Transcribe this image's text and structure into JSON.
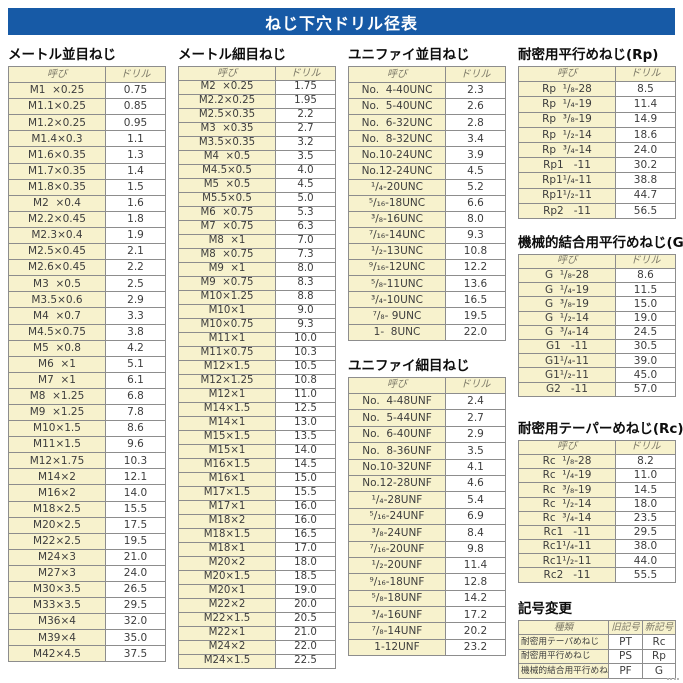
{
  "banner": {
    "title": "ねじ下穴ドリル径表",
    "bg_color": "#175aa6"
  },
  "column_headers": {
    "name": "呼び",
    "drill": "ドリル"
  },
  "colors": {
    "cell_yellow": "#f7f2cd",
    "border_gray": "#8d8d8d",
    "text": "#3d3d3d"
  },
  "tables": {
    "metric_coarse": {
      "title": "メートル並目ねじ",
      "rows": [
        [
          "M1  ×0.25",
          "0.75"
        ],
        [
          "M1.1×0.25",
          "0.85"
        ],
        [
          "M1.2×0.25",
          "0.95"
        ],
        [
          "M1.4×0.3",
          "1.1"
        ],
        [
          "M1.6×0.35",
          "1.3"
        ],
        [
          "M1.7×0.35",
          "1.4"
        ],
        [
          "M1.8×0.35",
          "1.5"
        ],
        [
          "M2  ×0.4",
          "1.6"
        ],
        [
          "M2.2×0.45",
          "1.8"
        ],
        [
          "M2.3×0.4",
          "1.9"
        ],
        [
          "M2.5×0.45",
          "2.1"
        ],
        [
          "M2.6×0.45",
          "2.2"
        ],
        [
          "M3  ×0.5",
          "2.5"
        ],
        [
          "M3.5×0.6",
          "2.9"
        ],
        [
          "M4  ×0.7",
          "3.3"
        ],
        [
          "M4.5×0.75",
          "3.8"
        ],
        [
          "M5  ×0.8",
          "4.2"
        ],
        [
          "M6  ×1",
          "5.1"
        ],
        [
          "M7  ×1",
          "6.1"
        ],
        [
          "M8  ×1.25",
          "6.8"
        ],
        [
          "M9  ×1.25",
          "7.8"
        ],
        [
          "M10×1.5",
          "8.6"
        ],
        [
          "M11×1.5",
          "9.6"
        ],
        [
          "M12×1.75",
          "10.3"
        ],
        [
          "M14×2",
          "12.1"
        ],
        [
          "M16×2",
          "14.0"
        ],
        [
          "M18×2.5",
          "15.5"
        ],
        [
          "M20×2.5",
          "17.5"
        ],
        [
          "M22×2.5",
          "19.5"
        ],
        [
          "M24×3",
          "21.0"
        ],
        [
          "M27×3",
          "24.0"
        ],
        [
          "M30×3.5",
          "26.5"
        ],
        [
          "M33×3.5",
          "29.5"
        ],
        [
          "M36×4",
          "32.0"
        ],
        [
          "M39×4",
          "35.0"
        ],
        [
          "M42×4.5",
          "37.5"
        ]
      ]
    },
    "metric_fine": {
      "title": "メートル細目ねじ",
      "rows": [
        [
          "M2  ×0.25",
          "1.75"
        ],
        [
          "M2.2×0.25",
          "1.95"
        ],
        [
          "M2.5×0.35",
          "2.2"
        ],
        [
          "M3  ×0.35",
          "2.7"
        ],
        [
          "M3.5×0.35",
          "3.2"
        ],
        [
          "M4  ×0.5",
          "3.5"
        ],
        [
          "M4.5×0.5",
          "4.0"
        ],
        [
          "M5  ×0.5",
          "4.5"
        ],
        [
          "M5.5×0.5",
          "5.0"
        ],
        [
          "M6  ×0.75",
          "5.3"
        ],
        [
          "M7  ×0.75",
          "6.3"
        ],
        [
          "M8  ×1",
          "7.0"
        ],
        [
          "M8  ×0.75",
          "7.3"
        ],
        [
          "M9  ×1",
          "8.0"
        ],
        [
          "M9  ×0.75",
          "8.3"
        ],
        [
          "M10×1.25",
          "8.8"
        ],
        [
          "M10×1",
          "9.0"
        ],
        [
          "M10×0.75",
          "9.3"
        ],
        [
          "M11×1",
          "10.0"
        ],
        [
          "M11×0.75",
          "10.3"
        ],
        [
          "M12×1.5",
          "10.5"
        ],
        [
          "M12×1.25",
          "10.8"
        ],
        [
          "M12×1",
          "11.0"
        ],
        [
          "M14×1.5",
          "12.5"
        ],
        [
          "M14×1",
          "13.0"
        ],
        [
          "M15×1.5",
          "13.5"
        ],
        [
          "M15×1",
          "14.0"
        ],
        [
          "M16×1.5",
          "14.5"
        ],
        [
          "M16×1",
          "15.0"
        ],
        [
          "M17×1.5",
          "15.5"
        ],
        [
          "M17×1",
          "16.0"
        ],
        [
          "M18×2",
          "16.0"
        ],
        [
          "M18×1.5",
          "16.5"
        ],
        [
          "M18×1",
          "17.0"
        ],
        [
          "M20×2",
          "18.0"
        ],
        [
          "M20×1.5",
          "18.5"
        ],
        [
          "M20×1",
          "19.0"
        ],
        [
          "M22×2",
          "20.0"
        ],
        [
          "M22×1.5",
          "20.5"
        ],
        [
          "M22×1",
          "21.0"
        ],
        [
          "M24×2",
          "22.0"
        ],
        [
          "M24×1.5",
          "22.5"
        ]
      ]
    },
    "unified_coarse": {
      "title": "ユニファイ並目ねじ",
      "rows": [
        [
          "No.  4-40UNC",
          "2.3"
        ],
        [
          "No.  5-40UNC",
          "2.6"
        ],
        [
          "No.  6-32UNC",
          "2.8"
        ],
        [
          "No.  8-32UNC",
          "3.4"
        ],
        [
          "No.10-24UNC",
          "3.9"
        ],
        [
          "No.12-24UNC",
          "4.5"
        ],
        [
          "¹/₄-20UNC",
          "5.2"
        ],
        [
          "⁵/₁₆-18UNC",
          "6.6"
        ],
        [
          "³/₈-16UNC",
          "8.0"
        ],
        [
          "⁷/₁₆-14UNC",
          "9.3"
        ],
        [
          "¹/₂-13UNC",
          "10.8"
        ],
        [
          "⁹/₁₆-12UNC",
          "12.2"
        ],
        [
          "⁵/₈-11UNC",
          "13.6"
        ],
        [
          "³/₄-10UNC",
          "16.5"
        ],
        [
          "⁷/₈- 9UNC",
          "19.5"
        ],
        [
          "1-  8UNC",
          "22.0"
        ]
      ]
    },
    "unified_fine": {
      "title": "ユニファイ細目ねじ",
      "rows": [
        [
          "No.  4-48UNF",
          "2.4"
        ],
        [
          "No.  5-44UNF",
          "2.7"
        ],
        [
          "No.  6-40UNF",
          "2.9"
        ],
        [
          "No.  8-36UNF",
          "3.5"
        ],
        [
          "No.10-32UNF",
          "4.1"
        ],
        [
          "No.12-28UNF",
          "4.6"
        ],
        [
          "¹/₄-28UNF",
          "5.4"
        ],
        [
          "⁵/₁₆-24UNF",
          "6.9"
        ],
        [
          "³/₈-24UNF",
          "8.4"
        ],
        [
          "⁷/₁₆-20UNF",
          "9.8"
        ],
        [
          "¹/₂-20UNF",
          "11.4"
        ],
        [
          "⁹/₁₆-18UNF",
          "12.8"
        ],
        [
          "⁵/₈-18UNF",
          "14.2"
        ],
        [
          "³/₄-16UNF",
          "17.2"
        ],
        [
          "⁷/₈-14UNF",
          "20.2"
        ],
        [
          "1-12UNF",
          "23.2"
        ]
      ]
    },
    "rp": {
      "title": "耐密用平行めねじ(Rp)",
      "rows": [
        [
          "Rp  ¹/₈-28",
          "8.5"
        ],
        [
          "Rp  ¹/₄-19",
          "11.4"
        ],
        [
          "Rp  ³/₈-19",
          "14.9"
        ],
        [
          "Rp  ¹/₂-14",
          "18.6"
        ],
        [
          "Rp  ³/₄-14",
          "24.0"
        ],
        [
          "Rp1   -11",
          "30.2"
        ],
        [
          "Rp1¹/₄-11",
          "38.8"
        ],
        [
          "Rp1¹/₂-11",
          "44.7"
        ],
        [
          "Rp2   -11",
          "56.5"
        ]
      ]
    },
    "g": {
      "title": "機械的結合用平行めねじ(G)",
      "rows": [
        [
          "G  ¹/₈-28",
          "8.6"
        ],
        [
          "G  ¹/₄-19",
          "11.5"
        ],
        [
          "G  ³/₈-19",
          "15.0"
        ],
        [
          "G  ¹/₂-14",
          "19.0"
        ],
        [
          "G  ³/₄-14",
          "24.5"
        ],
        [
          "G1   -11",
          "30.5"
        ],
        [
          "G1¹/₄-11",
          "39.0"
        ],
        [
          "G1¹/₂-11",
          "45.0"
        ],
        [
          "G2   -11",
          "57.0"
        ]
      ]
    },
    "rc": {
      "title": "耐密用テーパーめねじ(Rc)",
      "rows": [
        [
          "Rc  ¹/₈-28",
          "8.2"
        ],
        [
          "Rc  ¹/₄-19",
          "11.0"
        ],
        [
          "Rc  ³/₈-19",
          "14.5"
        ],
        [
          "Rc  ¹/₂-14",
          "18.0"
        ],
        [
          "Rc  ³/₄-14",
          "23.5"
        ],
        [
          "Rc1   -11",
          "29.5"
        ],
        [
          "Rc1¹/₄-11",
          "38.0"
        ],
        [
          "Rc1¹/₂-11",
          "44.0"
        ],
        [
          "Rc2   -11",
          "55.5"
        ]
      ]
    },
    "symbol_change": {
      "title": "記号変更",
      "headers": [
        "種類",
        "旧記号",
        "新記号"
      ],
      "rows": [
        [
          "耐密用テーパめねじ",
          "PT",
          "Rc"
        ],
        [
          "耐密用平行めねじ",
          "PS",
          "Rp"
        ],
        [
          "機械的結合用平行めねじ",
          "PF",
          "G"
        ]
      ]
    }
  }
}
